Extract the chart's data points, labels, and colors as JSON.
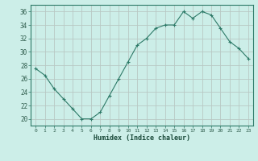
{
  "x": [
    0,
    1,
    2,
    3,
    4,
    5,
    6,
    7,
    8,
    9,
    10,
    11,
    12,
    13,
    14,
    15,
    16,
    17,
    18,
    19,
    20,
    21,
    22,
    23
  ],
  "y": [
    27.5,
    26.5,
    24.5,
    23.0,
    21.5,
    20.0,
    20.0,
    21.0,
    23.5,
    26.0,
    28.5,
    31.0,
    32.0,
    33.5,
    34.0,
    34.0,
    36.0,
    35.0,
    36.0,
    35.5,
    33.5,
    31.5,
    30.5,
    29.0
  ],
  "ylim": [
    19,
    37
  ],
  "yticks": [
    20,
    22,
    24,
    26,
    28,
    30,
    32,
    34,
    36
  ],
  "xticks": [
    0,
    1,
    2,
    3,
    4,
    5,
    6,
    7,
    8,
    9,
    10,
    11,
    12,
    13,
    14,
    15,
    16,
    17,
    18,
    19,
    20,
    21,
    22,
    23
  ],
  "xlabel": "Humidex (Indice chaleur)",
  "line_color": "#2d7a68",
  "marker_color": "#2d7a68",
  "bg_color": "#cceee8",
  "grid_color": "#b8c8c4"
}
